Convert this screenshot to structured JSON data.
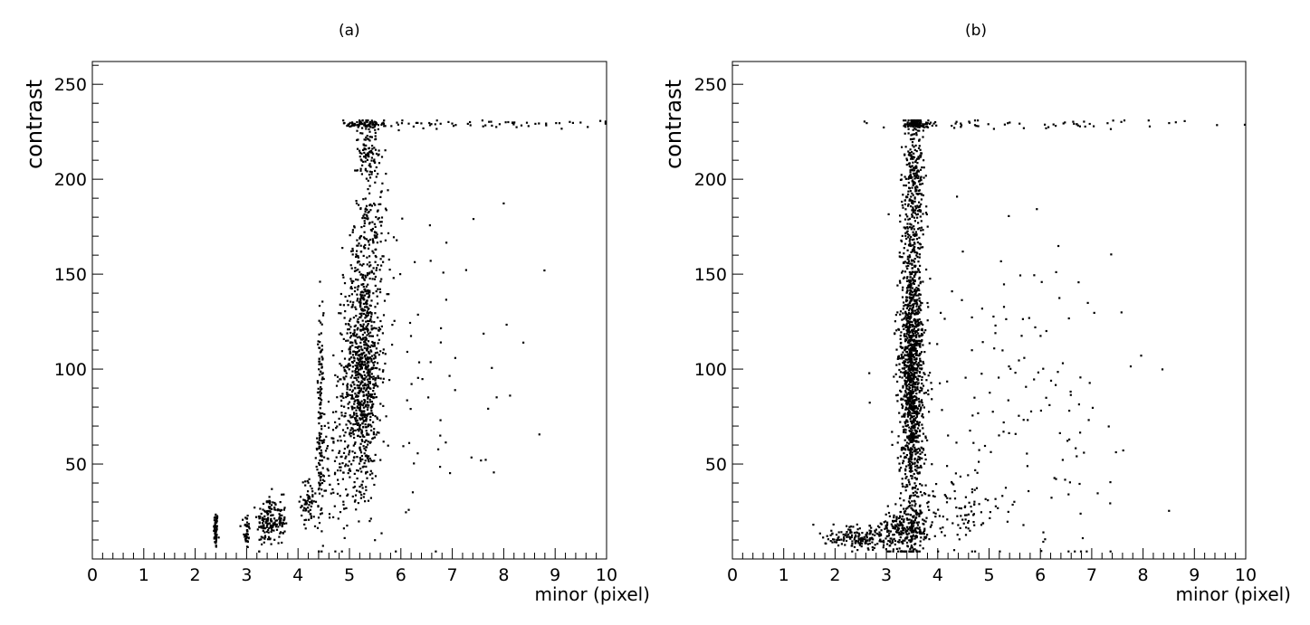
{
  "chart_data": [
    {
      "panel_label": "(a)",
      "type": "scatter",
      "xlabel": "minor (pixel)",
      "ylabel": "contrast",
      "xlim": [
        0,
        10
      ],
      "ylim": [
        0,
        262
      ],
      "x_ticks": [
        "0",
        "1",
        "2",
        "3",
        "4",
        "5",
        "6",
        "7",
        "8",
        "9",
        "10"
      ],
      "y_ticks": [
        "50",
        "100",
        "150",
        "200",
        "250"
      ],
      "grid": false,
      "series": [
        {
          "clusters": [
            {
              "x": 2.4,
              "sx": 0.02,
              "y": 15,
              "sy": 5,
              "n": 60
            },
            {
              "x": 3.0,
              "sx": 0.03,
              "y": 15,
              "sy": 5,
              "n": 40
            },
            {
              "x": 3.4,
              "sx": 0.1,
              "y": 20,
              "sy": 7,
              "n": 130
            },
            {
              "x": 3.65,
              "sx": 0.05,
              "y": 20,
              "sy": 6,
              "n": 50
            },
            {
              "x": 4.2,
              "sx": 0.07,
              "y": 30,
              "sy": 6,
              "n": 60
            },
            {
              "x": 4.43,
              "sx": 0.03,
              "y": 70,
              "sy": 30,
              "n": 140
            },
            {
              "x": 4.85,
              "sx": 0.25,
              "y": 55,
              "sy": 20,
              "n": 150
            },
            {
              "x": 5.25,
              "sx": 0.18,
              "y": 100,
              "sy": 30,
              "n": 900
            },
            {
              "x": 5.4,
              "sx": 0.18,
              "y": 170,
              "sy": 25,
              "n": 200
            },
            {
              "x": 5.35,
              "sx": 0.1,
              "y": 218,
              "sy": 8,
              "n": 100
            },
            {
              "x": 5.3,
              "sx": 0.2,
              "y": 229,
              "sy": 1,
              "n": 60
            },
            {
              "x": 7.5,
              "sx": 1.3,
              "y": 229,
              "sy": 1.2,
              "n": 70
            },
            {
              "x": 6.6,
              "sx": 0.9,
              "y": 100,
              "sy": 45,
              "n": 70
            }
          ]
        }
      ]
    },
    {
      "panel_label": "(b)",
      "type": "scatter",
      "xlabel": "minor (pixel)",
      "ylabel": "contrast",
      "xlim": [
        0,
        10
      ],
      "ylim": [
        0,
        262
      ],
      "x_ticks": [
        "0",
        "1",
        "2",
        "3",
        "4",
        "5",
        "6",
        "7",
        "8",
        "9",
        "10"
      ],
      "y_ticks": [
        "50",
        "100",
        "150",
        "200",
        "250"
      ],
      "grid": false,
      "series": [
        {
          "clusters": [
            {
              "x": 2.5,
              "sx": 0.35,
              "y": 11,
              "sy": 3,
              "n": 180
            },
            {
              "x": 3.3,
              "sx": 0.25,
              "y": 15,
              "sy": 6,
              "n": 200
            },
            {
              "x": 3.5,
              "sx": 0.12,
              "y": 100,
              "sy": 45,
              "n": 1400
            },
            {
              "x": 3.55,
              "sx": 0.1,
              "y": 200,
              "sy": 18,
              "n": 250
            },
            {
              "x": 3.6,
              "sx": 0.12,
              "y": 229,
              "sy": 1,
              "n": 80
            },
            {
              "x": 5.5,
              "sx": 1.4,
              "y": 229,
              "sy": 1.3,
              "n": 60
            },
            {
              "x": 5.5,
              "sx": 1.2,
              "y": 80,
              "sy": 45,
              "n": 170
            },
            {
              "x": 4.3,
              "sx": 0.5,
              "y": 25,
              "sy": 8,
              "n": 100
            }
          ]
        }
      ]
    }
  ]
}
